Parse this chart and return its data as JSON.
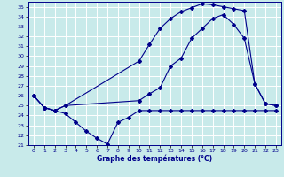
{
  "xlabel": "Graphe des températures (°C)",
  "xlim": [
    -0.5,
    23.5
  ],
  "ylim": [
    21,
    35.5
  ],
  "yticks": [
    21,
    22,
    23,
    24,
    25,
    26,
    27,
    28,
    29,
    30,
    31,
    32,
    33,
    34,
    35
  ],
  "xticks": [
    0,
    1,
    2,
    3,
    4,
    5,
    6,
    7,
    8,
    9,
    10,
    11,
    12,
    13,
    14,
    15,
    16,
    17,
    18,
    19,
    20,
    21,
    22,
    23
  ],
  "bg_color": "#c8eaea",
  "grid_color": "#ffffff",
  "line_color": "#00008b",
  "line1_x": [
    0,
    1,
    2,
    3,
    10,
    11,
    12,
    13,
    14,
    15,
    16,
    17,
    18,
    19,
    20,
    21,
    22,
    23
  ],
  "line1_y": [
    26,
    24.8,
    24.5,
    25.0,
    29.5,
    31.2,
    32.8,
    33.8,
    34.5,
    34.9,
    35.3,
    35.2,
    35.0,
    34.8,
    34.6,
    27.2,
    25.2,
    25.0
  ],
  "line2_x": [
    0,
    1,
    2,
    3,
    10,
    11,
    12,
    13,
    14,
    15,
    16,
    17,
    18,
    19,
    20,
    21,
    22,
    23
  ],
  "line2_y": [
    26,
    24.8,
    24.5,
    25.0,
    25.5,
    26.2,
    26.8,
    29.0,
    29.8,
    31.8,
    32.8,
    33.8,
    34.2,
    33.2,
    31.8,
    27.2,
    25.2,
    25.0
  ],
  "line3_x": [
    0,
    1,
    2,
    3,
    4,
    5,
    6,
    7,
    8,
    9,
    10,
    11,
    12,
    13,
    14,
    15,
    16,
    17,
    18,
    19,
    20,
    21,
    22,
    23
  ],
  "line3_y": [
    26,
    24.8,
    24.5,
    24.2,
    23.3,
    22.4,
    21.7,
    21.1,
    23.3,
    23.8,
    24.5,
    24.5,
    24.5,
    24.5,
    24.5,
    24.5,
    24.5,
    24.5,
    24.5,
    24.5,
    24.5,
    24.5,
    24.5,
    24.5
  ]
}
